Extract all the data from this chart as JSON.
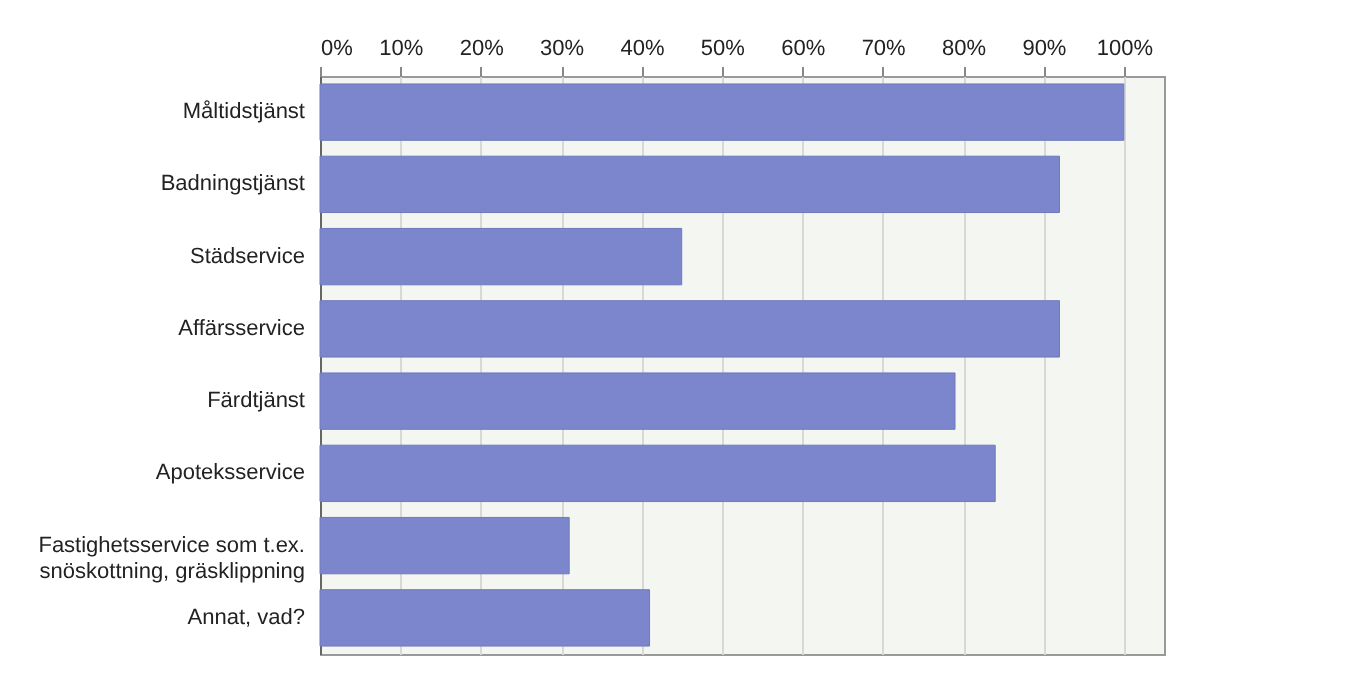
{
  "chart_data": {
    "type": "bar",
    "orientation": "horizontal",
    "categories": [
      "Måltidstjänst",
      "Badningstjänst",
      "Städservice",
      "Affärsservice",
      "Färdtjänst",
      "Apoteksservice",
      "Fastighetsservice som t.ex. snöskottning, gräsklippning",
      "Annat, vad?"
    ],
    "values": [
      100,
      92,
      45,
      92,
      79,
      84,
      31,
      41
    ],
    "color": "#7b86cc",
    "xlim": [
      0,
      105
    ],
    "xticks": [
      {
        "value": 0,
        "label": "0%"
      },
      {
        "value": 10,
        "label": "10%"
      },
      {
        "value": 20,
        "label": "20%"
      },
      {
        "value": 30,
        "label": "30%"
      },
      {
        "value": 40,
        "label": "40%"
      },
      {
        "value": 50,
        "label": "50%"
      },
      {
        "value": 60,
        "label": "60%"
      },
      {
        "value": 70,
        "label": "70%"
      },
      {
        "value": 80,
        "label": "80%"
      },
      {
        "value": 90,
        "label": "90%"
      },
      {
        "value": 100,
        "label": "100%"
      }
    ],
    "grid": "x"
  }
}
